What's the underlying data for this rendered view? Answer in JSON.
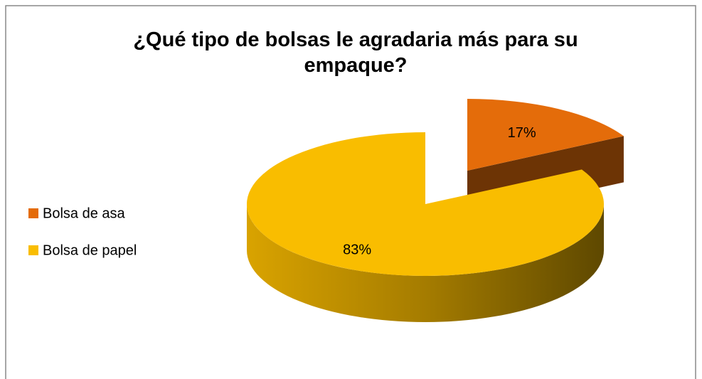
{
  "chart_data": {
    "type": "pie",
    "title": "¿Qué tipo de bolsas le agradaria más para su empaque?",
    "categories": [
      "Bolsa de asa",
      "Bolsa de papel"
    ],
    "values": [
      17,
      83
    ],
    "value_labels": [
      "17%",
      "83%"
    ],
    "colors": [
      "#e46c0a",
      "#f9bd00"
    ],
    "legend": "left"
  }
}
